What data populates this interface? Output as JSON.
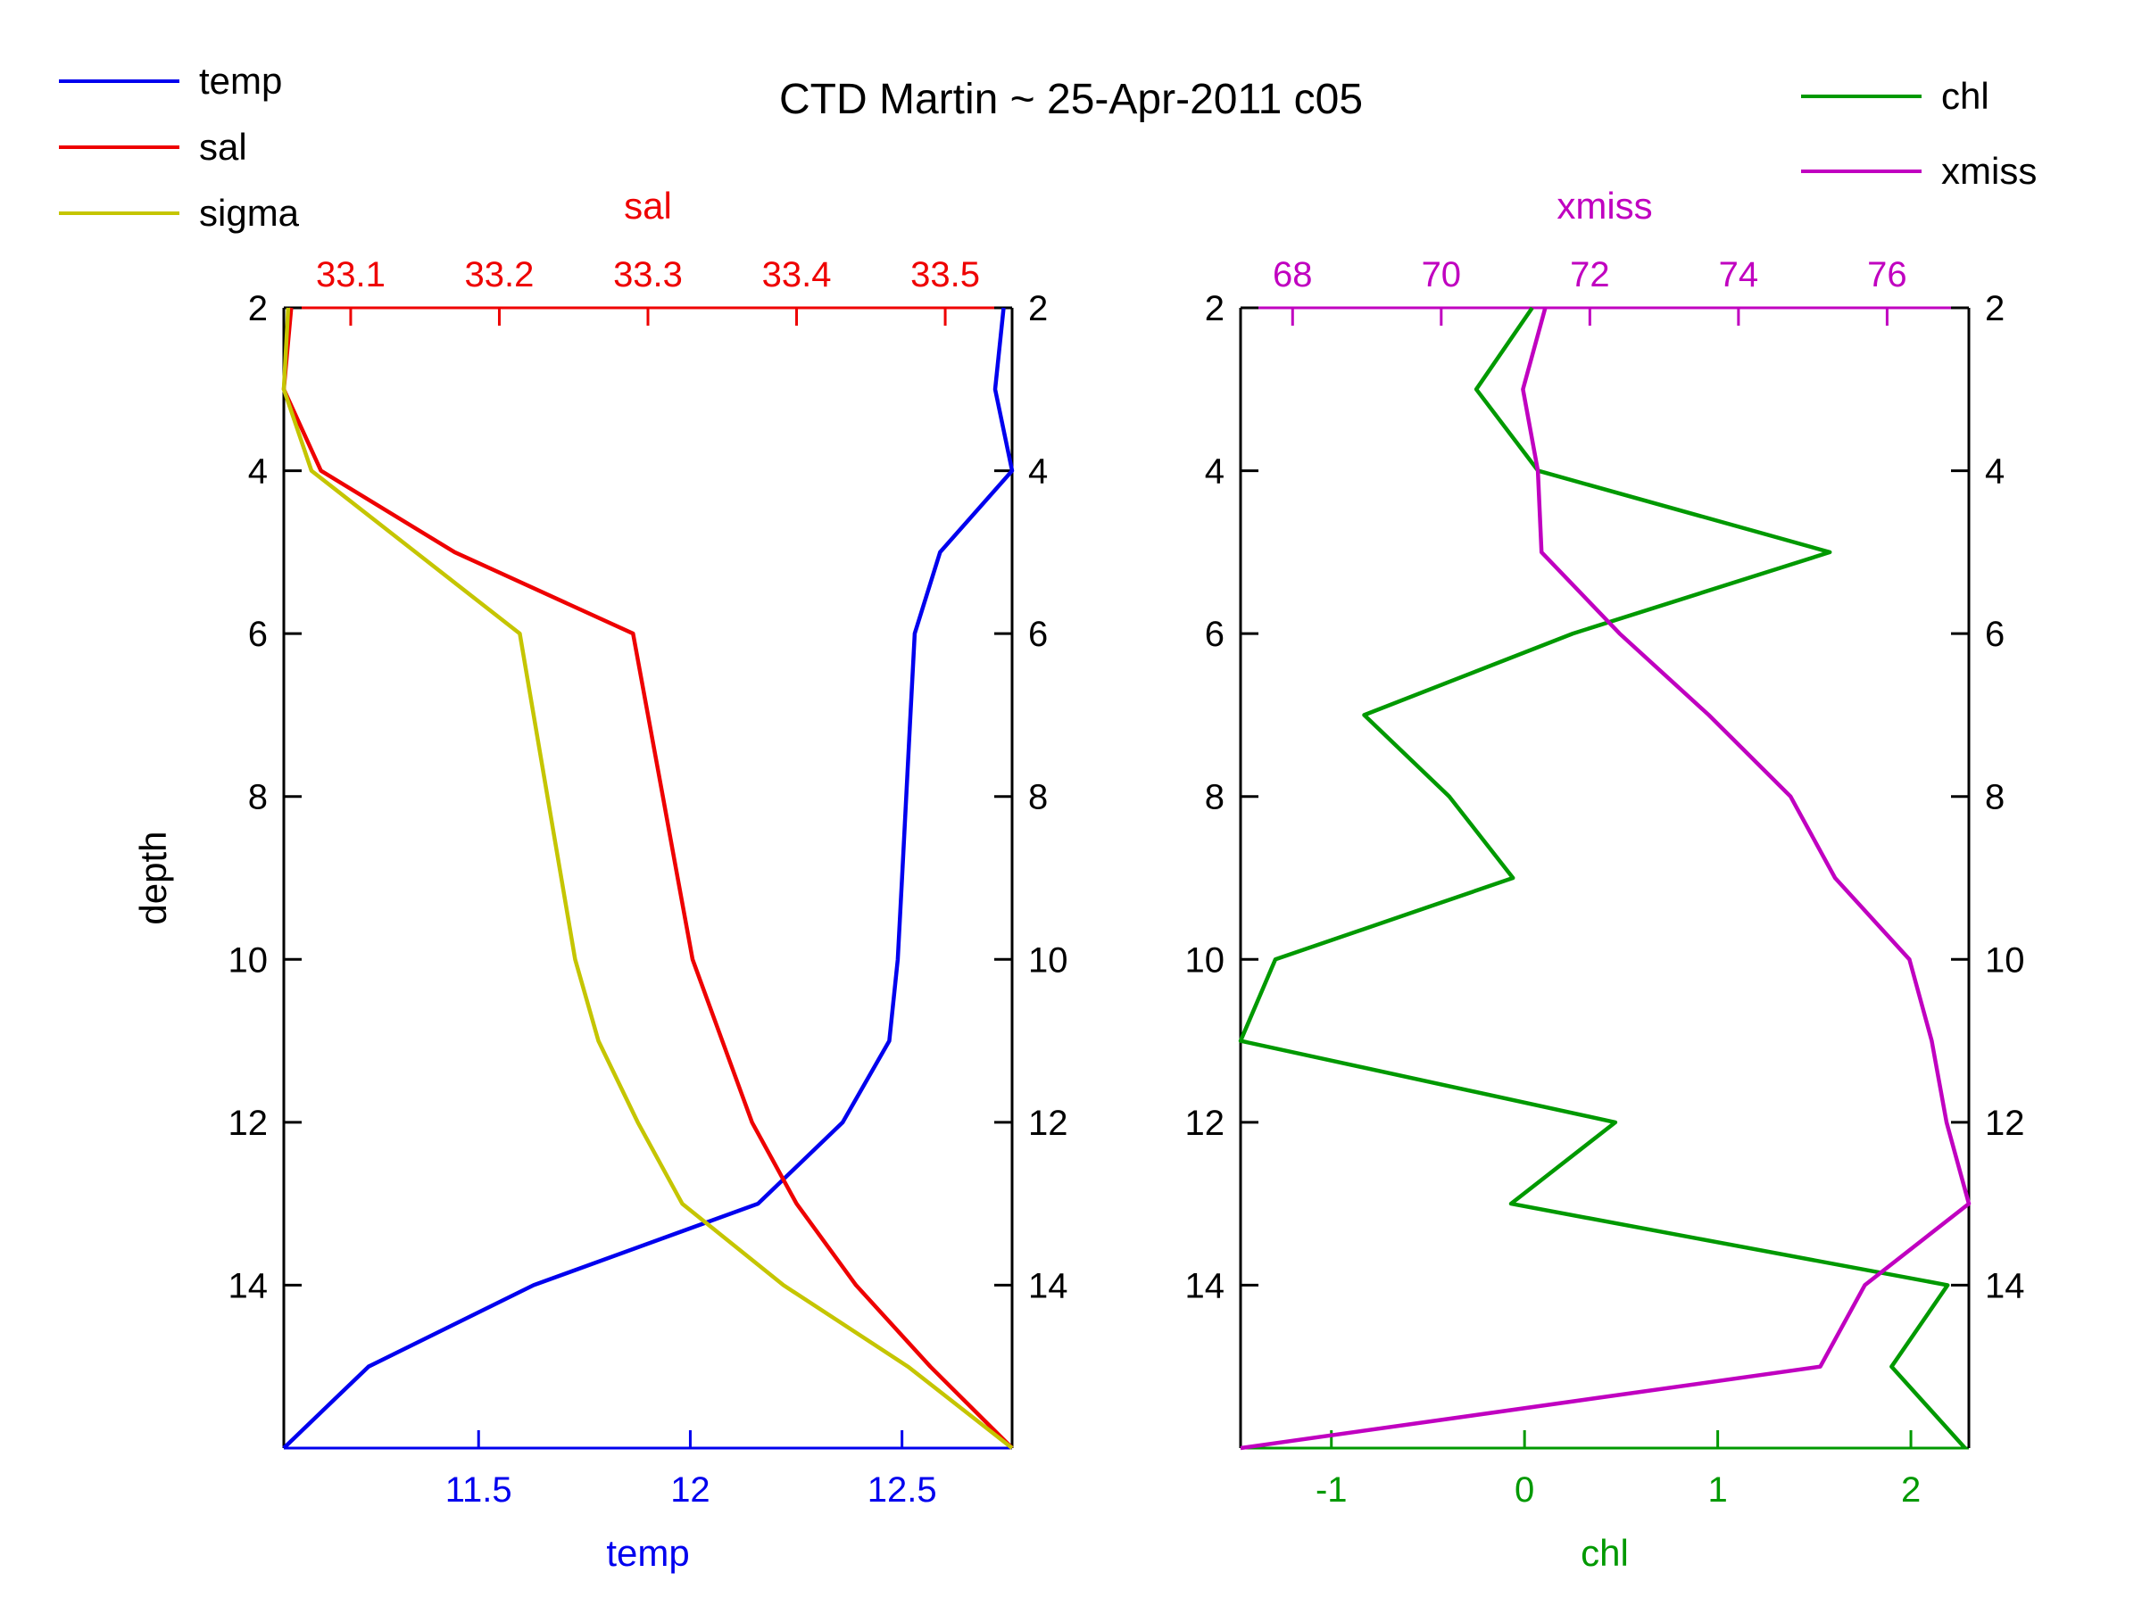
{
  "title": "CTD Martin ~ 25-Apr-2011 c05",
  "colors": {
    "temp": "#0000ee",
    "sal": "#ee0000",
    "sigma": "#c5c500",
    "chl": "#009900",
    "xmiss": "#c000c0",
    "axis_black": "#000000",
    "background": "#ffffff"
  },
  "legend_left": [
    {
      "label": "temp",
      "color": "#0000ee"
    },
    {
      "label": "sal",
      "color": "#ee0000"
    },
    {
      "label": "sigma",
      "color": "#c5c500"
    }
  ],
  "legend_right": [
    {
      "label": "chl",
      "color": "#009900"
    },
    {
      "label": "xmiss",
      "color": "#c000c0"
    }
  ],
  "chart_data": [
    {
      "type": "line",
      "name": "left-profile-plot",
      "depth_axis": {
        "label": "depth",
        "range": [
          2,
          16
        ],
        "ticks": [
          2,
          4,
          6,
          8,
          10,
          12,
          14
        ],
        "tick_labels": [
          "2",
          "4",
          "6",
          "8",
          "10",
          "12",
          "14"
        ]
      },
      "top_axis": {
        "label": "sal",
        "color": "#ee0000",
        "range": [
          33.055,
          33.545
        ],
        "ticks": [
          33.1,
          33.2,
          33.3,
          33.4,
          33.5
        ],
        "tick_labels": [
          "33.1",
          "33.2",
          "33.3",
          "33.4",
          "33.5"
        ]
      },
      "bottom_axis": {
        "label": "temp",
        "color": "#0000ee",
        "range": [
          11.04,
          12.76
        ],
        "ticks": [
          11.5,
          12,
          12.5
        ],
        "tick_labels": [
          "11.5",
          "12",
          "12.5"
        ]
      },
      "series": [
        {
          "name": "temp",
          "axis": "bottom",
          "color": "#0000ee",
          "depth": [
            2,
            3,
            4,
            5,
            6,
            7,
            8,
            9,
            10,
            11,
            12,
            13,
            14,
            15,
            16
          ],
          "values": [
            12.74,
            12.72,
            12.76,
            12.59,
            12.53,
            12.52,
            12.51,
            12.5,
            12.49,
            12.47,
            12.36,
            12.16,
            11.63,
            11.24,
            11.04
          ]
        },
        {
          "name": "sal",
          "axis": "top",
          "color": "#ee0000",
          "depth": [
            2,
            3,
            4,
            5,
            6,
            7,
            8,
            9,
            10,
            11,
            12,
            13,
            14,
            15,
            16
          ],
          "values": [
            33.06,
            33.055,
            33.08,
            33.17,
            33.29,
            33.3,
            33.31,
            33.32,
            33.33,
            33.35,
            33.37,
            33.4,
            33.44,
            33.49,
            33.545
          ]
        },
        {
          "name": "sigma",
          "axis": "fraction",
          "color": "#c5c500",
          "note": "sigma has no visible axis; values are fraction of plot width as drawn",
          "depth": [
            2,
            3,
            4,
            5,
            6,
            7,
            8,
            9,
            10,
            11,
            12,
            13,
            14,
            15,
            16
          ],
          "values": [
            0.006,
            0.0,
            0.038,
            0.181,
            0.324,
            0.343,
            0.362,
            0.381,
            0.4,
            0.432,
            0.486,
            0.547,
            0.686,
            0.857,
            1.0
          ]
        }
      ]
    },
    {
      "type": "line",
      "name": "right-profile-plot",
      "depth_axis": {
        "label": "",
        "range": [
          2,
          16
        ],
        "ticks": [
          2,
          4,
          6,
          8,
          10,
          12,
          14
        ],
        "tick_labels": [
          "2",
          "4",
          "6",
          "8",
          "10",
          "12",
          "14"
        ]
      },
      "top_axis": {
        "label": "xmiss",
        "color": "#c000c0",
        "range": [
          67.3,
          77.1
        ],
        "ticks": [
          68,
          70,
          72,
          74,
          76
        ],
        "tick_labels": [
          "68",
          "70",
          "72",
          "74",
          "76"
        ]
      },
      "bottom_axis": {
        "label": "chl",
        "color": "#009900",
        "range": [
          -1.47,
          2.3
        ],
        "ticks": [
          -1,
          0,
          1,
          2
        ],
        "tick_labels": [
          "-1",
          "0",
          "1",
          "2"
        ]
      },
      "series": [
        {
          "name": "chl",
          "axis": "bottom",
          "color": "#009900",
          "depth": [
            2,
            3,
            4,
            5,
            6,
            7,
            8,
            9,
            10,
            11,
            12,
            13,
            14,
            15,
            16
          ],
          "values": [
            0.04,
            -0.25,
            0.07,
            1.58,
            0.25,
            -0.83,
            -0.39,
            -0.06,
            -1.29,
            -1.47,
            0.47,
            -0.07,
            2.19,
            1.9,
            2.28
          ]
        },
        {
          "name": "xmiss",
          "axis": "top",
          "color": "#c000c0",
          "depth": [
            2,
            3,
            4,
            5,
            6,
            7,
            8,
            9,
            10,
            11,
            12,
            13,
            14,
            15,
            16
          ],
          "values": [
            71.4,
            71.1,
            71.3,
            71.35,
            72.4,
            73.6,
            74.7,
            75.3,
            76.3,
            76.6,
            76.8,
            77.1,
            75.7,
            75.1,
            67.3
          ]
        }
      ]
    }
  ]
}
